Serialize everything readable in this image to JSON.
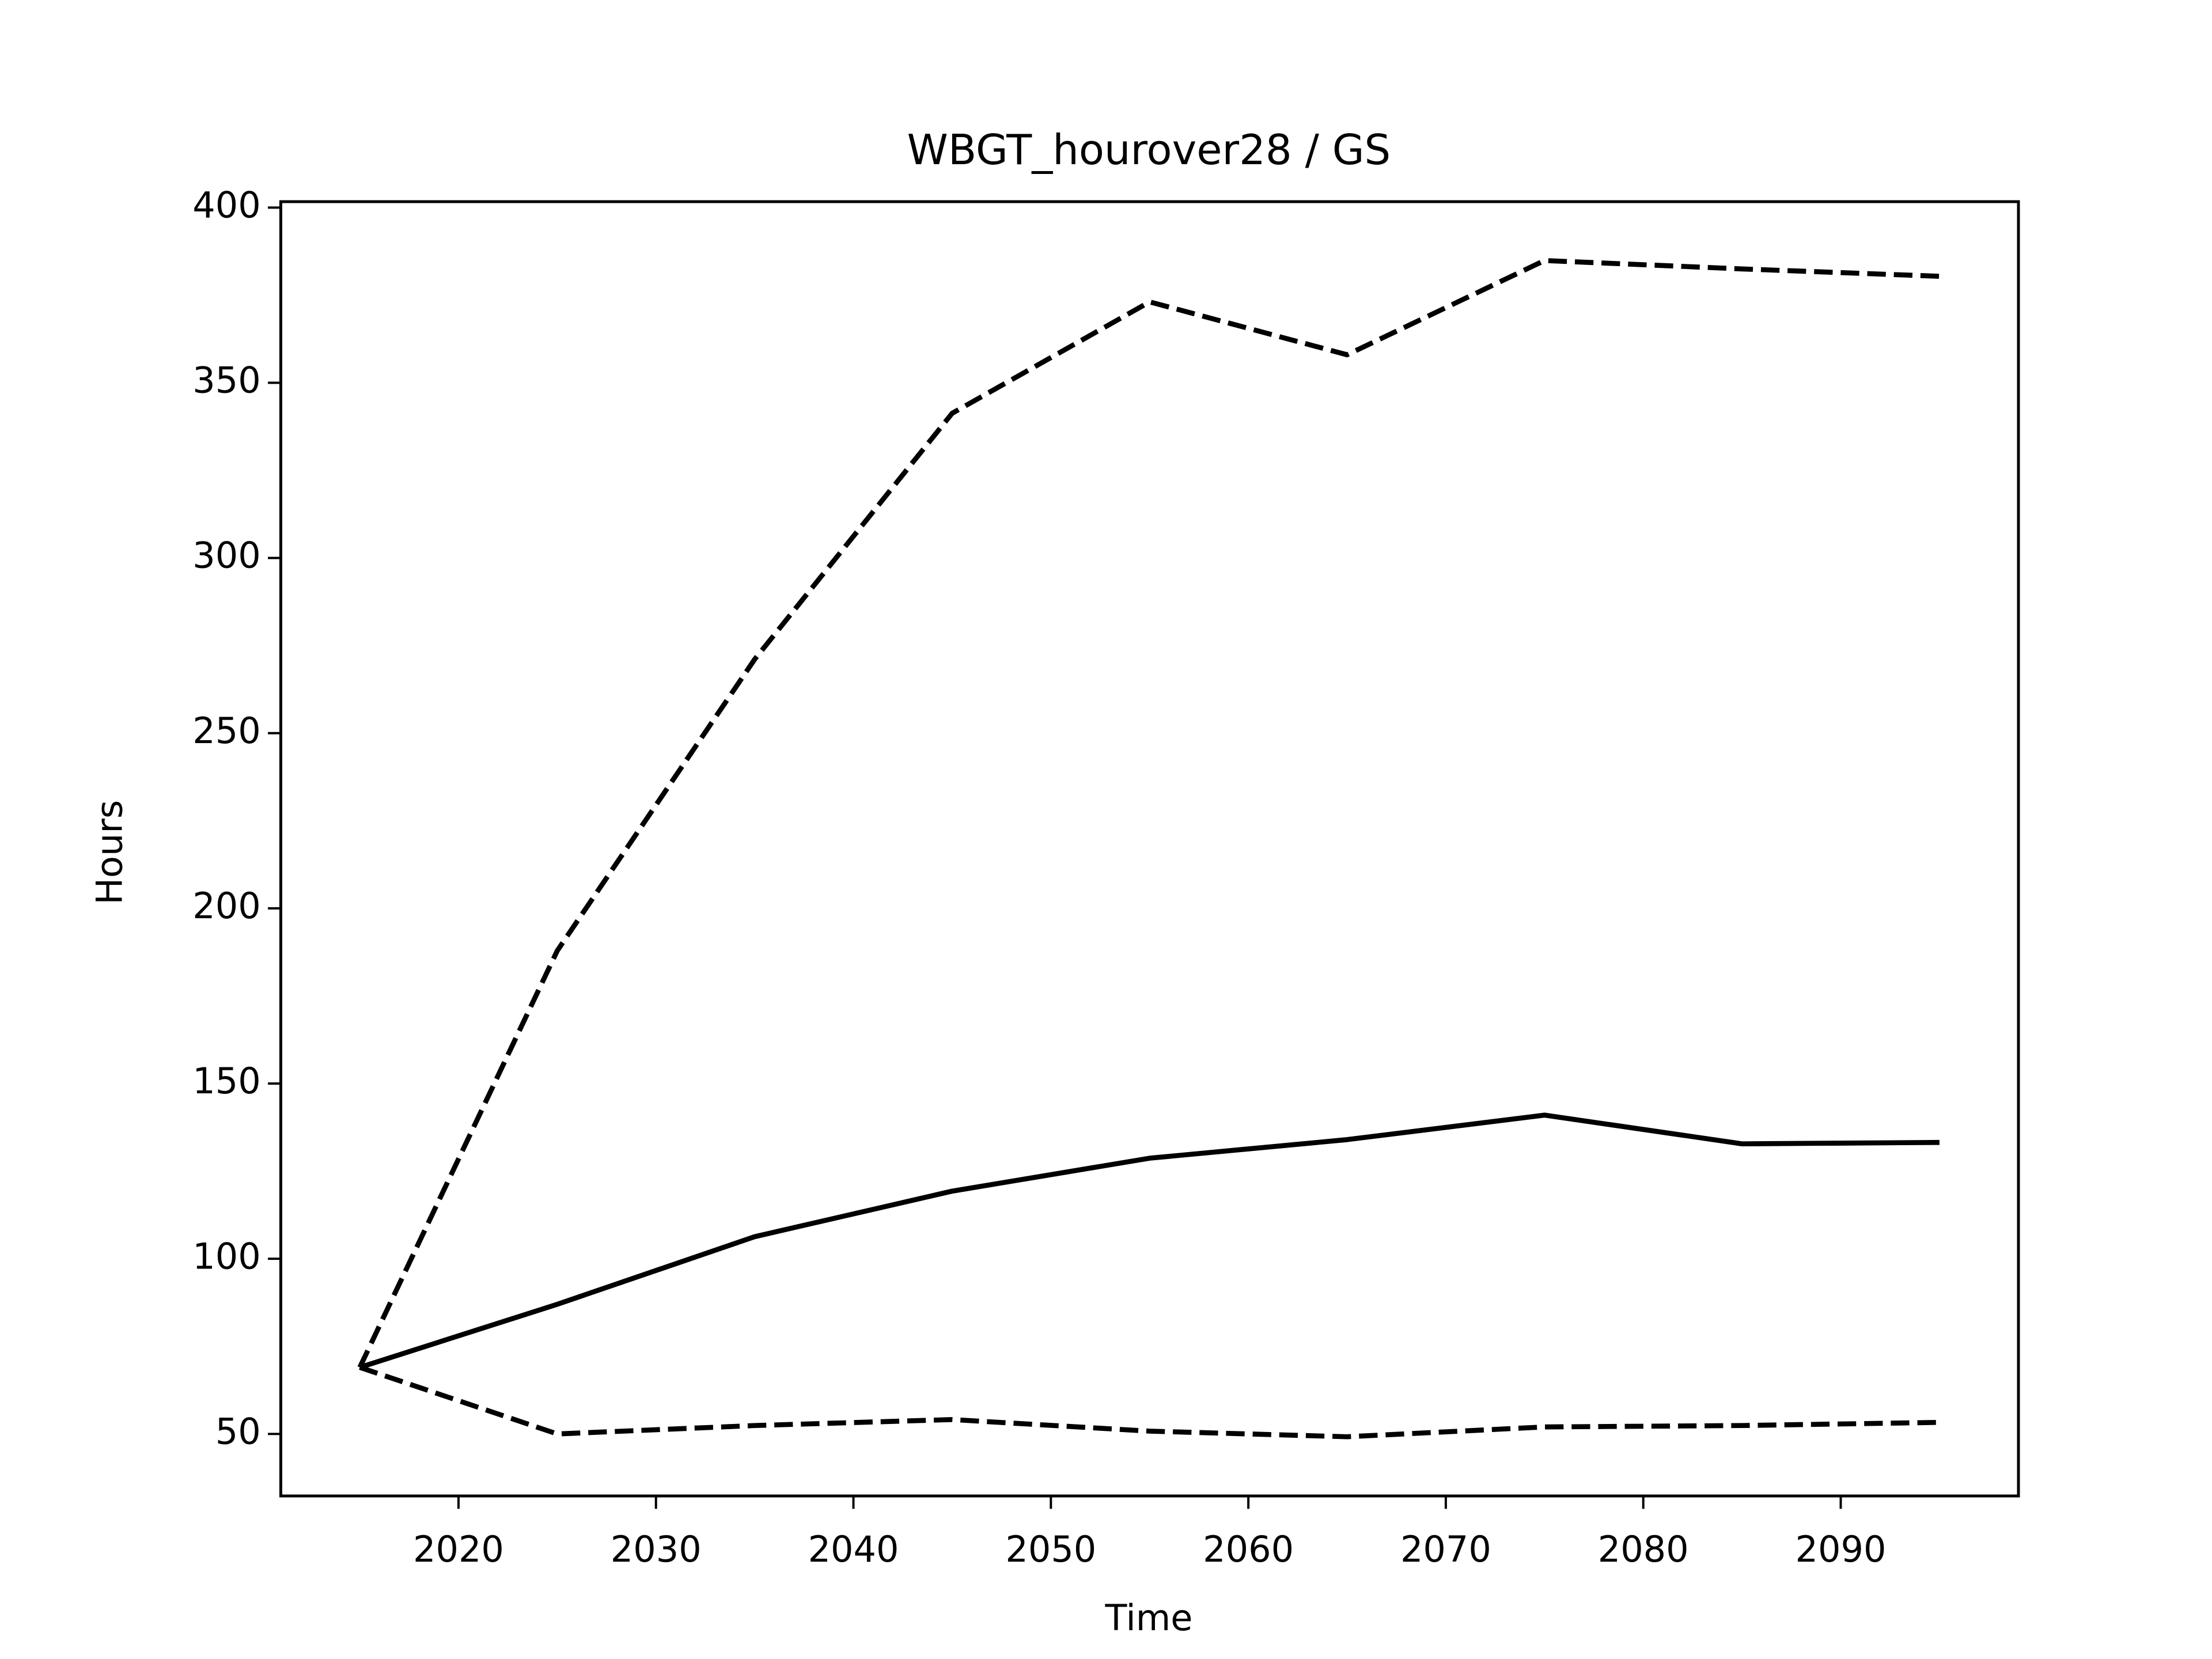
{
  "chart_data": {
    "type": "line",
    "title": "WBGT_hourover28 / GS",
    "x_label": "Time",
    "y_label": "Hours",
    "x": [
      2015,
      2025,
      2035,
      2045,
      2055,
      2065,
      2075,
      2085,
      2095
    ],
    "series": [
      {
        "color": "#000000",
        "linestyle": "solid",
        "values": [
          69,
          87,
          106.3,
          119.3,
          128.7,
          134,
          141,
          132.8,
          133.2
        ]
      },
      {
        "color": "#000000",
        "linestyle": "dashed",
        "values": [
          69,
          187.9,
          271.1,
          341.3,
          373.1,
          358,
          384.9,
          382.5,
          380.4
        ]
      },
      {
        "color": "#000000",
        "linestyle": "dashed",
        "values": [
          69,
          50,
          52.4,
          54.1,
          50.8,
          49.2,
          52,
          52.4,
          53.3
        ]
      }
    ],
    "xlim": [
      2011,
      2099
    ],
    "xticks": [
      2020,
      2030,
      2040,
      2050,
      2060,
      2070,
      2080,
      2090
    ],
    "ylim": [
      32.3,
      401.7
    ],
    "yticks": [
      50,
      100,
      150,
      200,
      250,
      300,
      350,
      400
    ],
    "grid": false
  }
}
